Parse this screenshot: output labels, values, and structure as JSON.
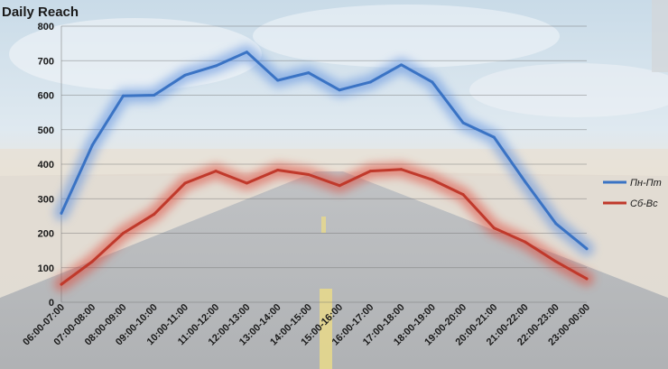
{
  "chart_data": {
    "type": "line",
    "title": "Daily Reach",
    "xlabel": "",
    "ylabel": "",
    "ylim": [
      0,
      800
    ],
    "yticks": [
      0,
      100,
      200,
      300,
      400,
      500,
      600,
      700,
      800
    ],
    "grid": true,
    "legend_position": "right",
    "categories": [
      "06:00-07:00",
      "07:00-08:00",
      "08:00-09:00",
      "09:00-10:00",
      "10:00-11:00",
      "11:00-12:00",
      "12:00-13:00",
      "13:00-14:00",
      "14:00-15:00",
      "15:00-16:00",
      "16:00-17:00",
      "17:00-18:00",
      "18:00-19:00",
      "19:00-20:00",
      "20:00-21:00",
      "21:00-22:00",
      "22:00-23:00",
      "23:00-00:00"
    ],
    "series": [
      {
        "name": "Пн-Пт",
        "color": "#3a73c4",
        "glow": "#5b8fe0",
        "values": [
          258,
          455,
          598,
          600,
          658,
          685,
          725,
          643,
          665,
          615,
          638,
          688,
          638,
          520,
          478,
          350,
          228,
          155
        ]
      },
      {
        "name": "Сб-Вс",
        "color": "#c0392b",
        "glow": "#e04a3a",
        "values": [
          52,
          118,
          200,
          255,
          345,
          380,
          345,
          383,
          370,
          338,
          380,
          385,
          355,
          312,
          215,
          175,
          118,
          68
        ]
      }
    ]
  }
}
